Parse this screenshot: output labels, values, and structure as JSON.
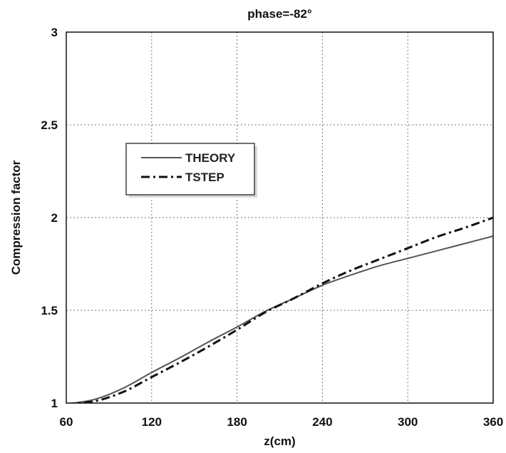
{
  "chart_data": {
    "type": "line",
    "title": "phase=-82°",
    "xlabel": "z(cm)",
    "ylabel": "Compression factor",
    "xlim": [
      60,
      360
    ],
    "ylim": [
      1,
      3
    ],
    "x_ticks": [
      60,
      120,
      180,
      240,
      300,
      360
    ],
    "y_ticks": [
      1,
      1.5,
      2,
      2.5,
      3
    ],
    "x_tick_labels": [
      "60",
      "120",
      "180",
      "240",
      "300",
      "360"
    ],
    "y_tick_labels": [
      "1",
      "1.5",
      "2",
      "2.5",
      "3"
    ],
    "grid": true,
    "legend_position": "upper-left",
    "series": [
      {
        "name": "THEORY",
        "style": "solid",
        "color": "#555555",
        "x": [
          60,
          80,
          100,
          120,
          140,
          160,
          180,
          200,
          220,
          240,
          260,
          280,
          300,
          320,
          340,
          360
        ],
        "y": [
          0.995,
          1.02,
          1.08,
          1.165,
          1.245,
          1.33,
          1.41,
          1.495,
          1.565,
          1.635,
          1.69,
          1.74,
          1.78,
          1.82,
          1.86,
          1.9
        ]
      },
      {
        "name": "TSTEP",
        "style": "dashdot",
        "color": "#111111",
        "x": [
          60,
          80,
          100,
          120,
          140,
          160,
          180,
          200,
          220,
          240,
          260,
          280,
          300,
          320,
          340,
          360
        ],
        "y": [
          0.995,
          1.01,
          1.06,
          1.14,
          1.22,
          1.305,
          1.395,
          1.49,
          1.565,
          1.645,
          1.715,
          1.775,
          1.835,
          1.895,
          1.945,
          2.0
        ]
      }
    ]
  }
}
